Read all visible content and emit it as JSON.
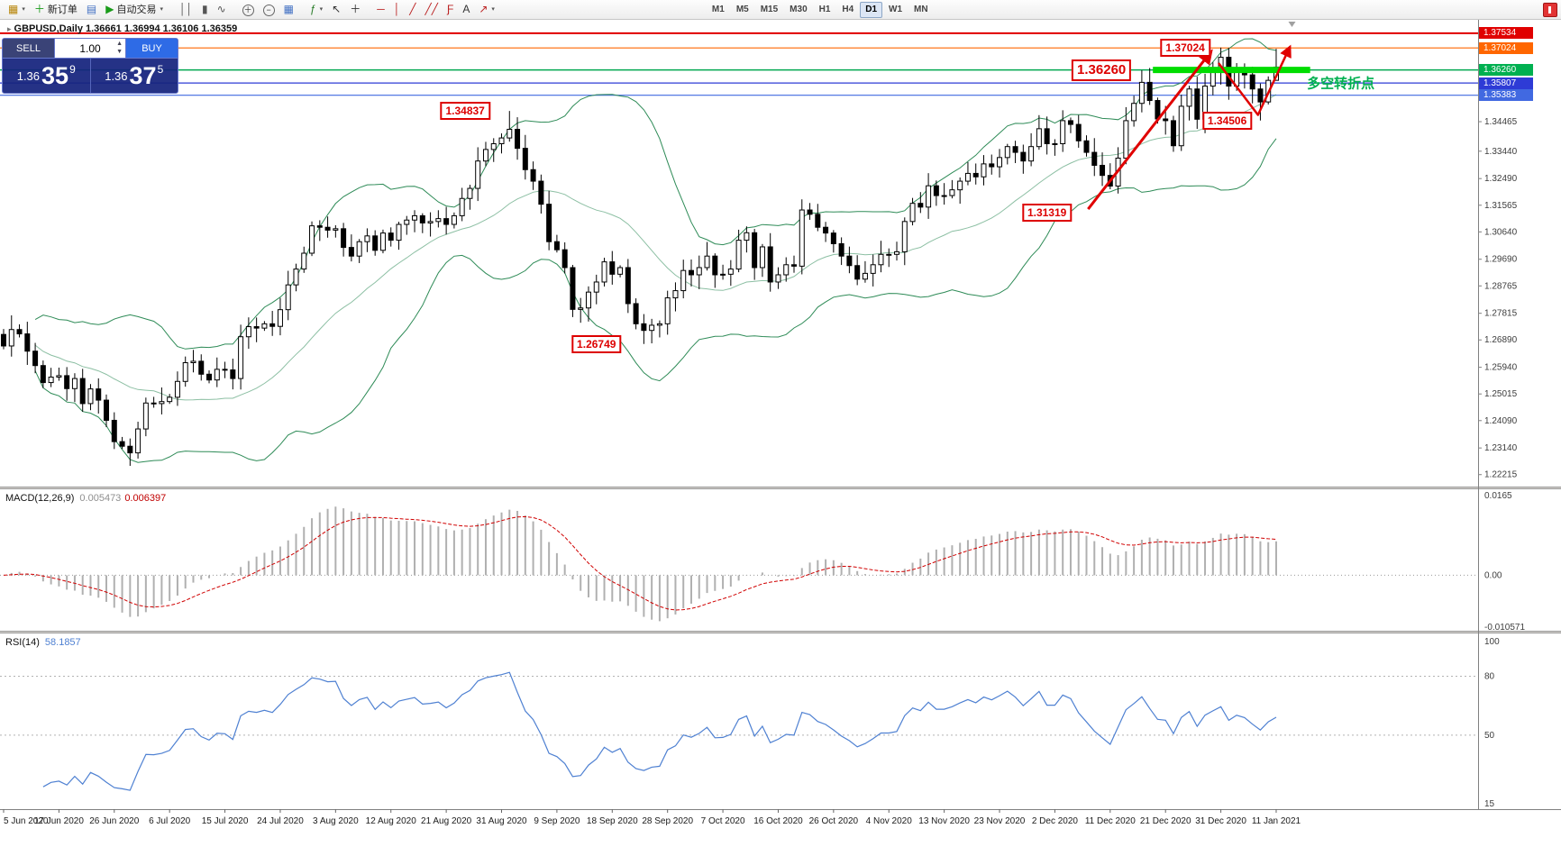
{
  "toolbar": {
    "main_buttons": [
      {
        "name": "new-chart",
        "glyph": "▦",
        "color": "#b8860b",
        "caret": true
      },
      {
        "name": "new-order",
        "glyph": "＋",
        "color": "#1a9c1a",
        "label": "新订单"
      },
      {
        "name": "chart-window",
        "glyph": "▤",
        "color": "#4472c4"
      },
      {
        "name": "auto-trading",
        "glyph": "▶",
        "color": "#1a9c1a",
        "label": "自动交易",
        "caret": true
      },
      {
        "sep": true
      },
      {
        "name": "bar-chart-mode",
        "glyph": "││",
        "color": "#555555"
      },
      {
        "name": "candlestick-mode",
        "glyph": "▮",
        "color": "#555555"
      },
      {
        "name": "line-chart-mode",
        "glyph": "∿",
        "color": "#555555"
      },
      {
        "sep": true
      },
      {
        "name": "zoom-in",
        "glyph": "＋",
        "color": "#333333",
        "circle": true
      },
      {
        "name": "zoom-out",
        "glyph": "−",
        "color": "#333333",
        "circle": true
      },
      {
        "name": "tile-windows",
        "glyph": "▦",
        "color": "#4472c4"
      },
      {
        "sep": true
      },
      {
        "name": "indicators",
        "glyph": "ƒ",
        "color": "#2a7d2a",
        "caret": true
      },
      {
        "name": "cursor",
        "glyph": "↖",
        "color": "#333333"
      },
      {
        "name": "crosshair",
        "glyph": "＋",
        "color": "#333333"
      },
      {
        "sep": true
      },
      {
        "name": "horizontal-line",
        "glyph": "─",
        "color": "#bb2222"
      },
      {
        "name": "vertical-line",
        "glyph": "│",
        "color": "#bb2222"
      },
      {
        "name": "trendline",
        "glyph": "╱",
        "color": "#bb2222"
      },
      {
        "name": "equidistant-channel",
        "glyph": "╱╱",
        "color": "#bb2222"
      },
      {
        "name": "fibonacci",
        "glyph": "Ƒ",
        "color": "#bb2222"
      },
      {
        "name": "text-label",
        "glyph": "A",
        "color": "#333333"
      },
      {
        "name": "arrows-tool",
        "glyph": "↗",
        "color": "#bb2222",
        "caret": true
      }
    ],
    "timeframes": [
      {
        "label": "M1"
      },
      {
        "label": "M5"
      },
      {
        "label": "M15"
      },
      {
        "label": "M30"
      },
      {
        "label": "H1"
      },
      {
        "label": "H4"
      },
      {
        "label": "D1",
        "active": true
      },
      {
        "label": "W1"
      },
      {
        "label": "MN"
      }
    ]
  },
  "symbol_header": {
    "marker": "▸",
    "text": "GBPUSD,Daily 1.36661 1.36994 1.36106 1.36359"
  },
  "trade_panel": {
    "sell_label": "SELL",
    "buy_label": "BUY",
    "volume": "1.00",
    "bid_prefix": "1.36",
    "bid_big": "35",
    "bid_sup": "9",
    "ask_prefix": "1.36",
    "ask_big": "37",
    "ask_sup": "5"
  },
  "price_axis": {
    "ticks": [
      "1.34465",
      "1.33440",
      "1.32490",
      "1.31565",
      "1.30640",
      "1.29690",
      "1.28765",
      "1.27815",
      "1.26890",
      "1.25940",
      "1.25015",
      "1.24090",
      "1.23140",
      "1.22215"
    ],
    "flags": [
      {
        "text": "1.37534",
        "value": 1.37534,
        "color": "#e00000"
      },
      {
        "text": "1.37024",
        "value": 1.37024,
        "color": "#ff6600"
      },
      {
        "text": "1.36260",
        "value": 1.3626,
        "color": "#00b050"
      },
      {
        "text": "1.35807",
        "value": 1.35807,
        "color": "#2e3bd6"
      },
      {
        "text": "1.35383",
        "value": 1.35383,
        "color": "#4169e1"
      }
    ]
  },
  "date_axis": {
    "labels": [
      "5 Jun 2020",
      "17 Jun 2020",
      "26 Jun 2020",
      "6 Jul 2020",
      "15 Jul 2020",
      "24 Jul 2020",
      "3 Aug 2020",
      "12 Aug 2020",
      "21 Aug 2020",
      "31 Aug 2020",
      "9 Sep 2020",
      "18 Sep 2020",
      "28 Sep 2020",
      "7 Oct 2020",
      "16 Oct 2020",
      "26 Oct 2020",
      "4 Nov 2020",
      "13 Nov 2020",
      "23 Nov 2020",
      "2 Dec 2020",
      "11 Dec 2020",
      "21 Dec 2020",
      "31 Dec 2020",
      "11 Jan 2021"
    ]
  },
  "panes": {
    "macd": {
      "title": "MACD(12,26,9)",
      "value_main": "0.005473",
      "value_signal": "0.006397",
      "axis": [
        "0.0165",
        "0.00",
        "-0.010571"
      ]
    },
    "rsi": {
      "title": "RSI(14)",
      "value": "58.1857",
      "axis": [
        "100",
        "80",
        "50",
        "15"
      ],
      "levels": [
        80,
        50
      ],
      "scale": [
        15,
        100
      ]
    }
  },
  "annotations": {
    "labels": [
      {
        "text": "1.34837",
        "idx": 58.4,
        "price": 1.34837,
        "size": "small"
      },
      {
        "text": "1.26749",
        "idx": 75.0,
        "price": 1.26749,
        "size": "small"
      },
      {
        "text": "1.31319",
        "idx": 132.0,
        "price": 1.31319,
        "size": "small"
      },
      {
        "text": "1.37024",
        "idx": 149.5,
        "price": 1.37024,
        "size": "small"
      },
      {
        "text": "1.36260",
        "idx": 138.9,
        "price": 1.3626,
        "size": "big"
      },
      {
        "text": "1.34506",
        "idx": 154.8,
        "price": 1.34506,
        "size": "small"
      }
    ],
    "green_segment": {
      "i1": 145.4,
      "i2": 165.3,
      "price": 1.3626,
      "color": "#00dd00"
    },
    "arrows": [
      {
        "points": [
          [
            137.2,
            1.3143
          ],
          [
            152.7,
            1.3688
          ]
        ],
        "width": 3
      },
      {
        "points": [
          [
            153.7,
            1.365
          ],
          [
            158.7,
            1.347
          ],
          [
            162.7,
            1.3704
          ]
        ],
        "width": 2.5
      }
    ],
    "note": {
      "text": "多空转折点",
      "idx": 164.9,
      "price": 1.358,
      "color": "#00b050"
    }
  },
  "chart_data": {
    "type": "candlestick",
    "symbol": "GBPUSD",
    "timeframe": "Daily",
    "ohlc_header": {
      "open": "1.36661",
      "high": "1.36994",
      "low": "1.36106",
      "close": "1.36359"
    },
    "y_range": [
      1.218,
      1.38
    ],
    "closes": [
      1.2668,
      1.2725,
      1.271,
      1.265,
      1.26,
      1.2541,
      1.256,
      1.2565,
      1.252,
      1.2555,
      1.2468,
      1.2519,
      1.248,
      1.241,
      1.2336,
      1.232,
      1.2297,
      1.238,
      1.247,
      1.2468,
      1.2475,
      1.249,
      1.2545,
      1.261,
      1.2615,
      1.257,
      1.255,
      1.2587,
      1.2585,
      1.2555,
      1.27,
      1.2735,
      1.273,
      1.2745,
      1.2736,
      1.2794,
      1.288,
      1.2935,
      1.299,
      1.3085,
      1.308,
      1.307,
      1.3075,
      1.301,
      1.298,
      1.303,
      1.305,
      1.3,
      1.306,
      1.3035,
      1.309,
      1.3105,
      1.312,
      1.3095,
      1.31,
      1.311,
      1.309,
      1.312,
      1.318,
      1.3215,
      1.331,
      1.335,
      1.337,
      1.339,
      1.342,
      1.3354,
      1.328,
      1.324,
      1.316,
      1.303,
      1.3002,
      1.294,
      1.2795,
      1.28,
      1.2855,
      1.289,
      1.296,
      1.2917,
      1.294,
      1.2815,
      1.2745,
      1.2722,
      1.274,
      1.2745,
      1.2835,
      1.286,
      1.293,
      1.2915,
      1.294,
      1.298,
      1.2915,
      1.2917,
      1.2935,
      1.3035,
      1.3061,
      1.294,
      1.3012,
      1.289,
      1.2915,
      1.295,
      1.2945,
      1.314,
      1.3125,
      1.308,
      1.306,
      1.3023,
      1.298,
      1.2947,
      1.29,
      1.292,
      1.295,
      1.2986,
      1.2986,
      1.2995,
      1.31,
      1.3163,
      1.315,
      1.3224,
      1.319,
      1.319,
      1.321,
      1.324,
      1.3267,
      1.3255,
      1.33,
      1.329,
      1.3322,
      1.336,
      1.334,
      1.331,
      1.336,
      1.3422,
      1.337,
      1.337,
      1.345,
      1.3437,
      1.338,
      1.334,
      1.3295,
      1.326,
      1.3223,
      1.332,
      1.345,
      1.351,
      1.3583,
      1.352,
      1.3456,
      1.345,
      1.3363,
      1.35,
      1.356,
      1.3455,
      1.357,
      1.362,
      1.367,
      1.357,
      1.3626,
      1.3609,
      1.356,
      1.3515,
      1.359,
      1.3636
    ],
    "extremes": {
      "16": {
        "low": 1.2252
      },
      "64": {
        "high": 1.34837
      },
      "81": {
        "low": 1.26749
      },
      "101": {
        "high": 1.3177
      },
      "144": {
        "high": 1.3625
      },
      "155": {
        "high": 1.37024
      },
      "159": {
        "low": 1.34506
      },
      "161": {
        "high": 1.36994,
        "low": 1.36106
      }
    },
    "levels": [
      {
        "price": 1.37534,
        "color": "#e00000",
        "width": 2
      },
      {
        "price": 1.37024,
        "color": "#ff6600",
        "width": 1.2
      },
      {
        "price": 1.3626,
        "color": "#00a84f",
        "width": 1.5
      },
      {
        "price": 1.35807,
        "color": "#2e3bd6",
        "width": 1.2
      },
      {
        "price": 1.35383,
        "color": "#4169e1",
        "width": 1.2
      }
    ],
    "indicators": {
      "bollinger": {
        "period": 20,
        "deviation": 2
      },
      "macd": {
        "fast": 12,
        "slow": 26,
        "signal": 9
      },
      "rsi": {
        "period": 14
      }
    },
    "macd_scale": [
      -0.010571,
      0.0165
    ]
  }
}
